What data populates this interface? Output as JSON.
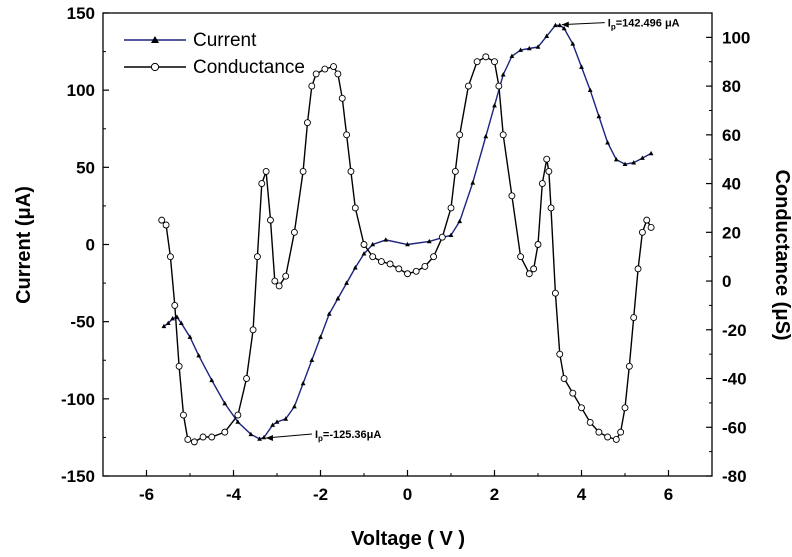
{
  "chart_data": {
    "type": "line",
    "xlabel": "Voltage ( V )",
    "ylabel": "Current (μA)",
    "y2label": "Conductance (μS)",
    "xlim": [
      -7,
      7
    ],
    "ylim": [
      -150,
      150
    ],
    "y2lim": [
      -80,
      110
    ],
    "xticks": [
      "-6",
      "-4",
      "-2",
      "0",
      "2",
      "4",
      "6"
    ],
    "yticks": [
      "150",
      "100",
      "50",
      "0",
      "-50",
      "-100",
      "-150"
    ],
    "y2ticks": [
      "100",
      "80",
      "60",
      "40",
      "20",
      "0",
      "-20",
      "-40",
      "-60",
      "-80"
    ],
    "legend_position": "top-left",
    "grid": false,
    "series": [
      {
        "name": "Current",
        "axis": "left",
        "marker": "triangle",
        "color": "#1a237e",
        "x": [
          -5.6,
          -5.5,
          -5.4,
          -5.3,
          -5.2,
          -5.0,
          -4.8,
          -4.5,
          -4.2,
          -3.9,
          -3.6,
          -3.4,
          -3.3,
          -3.1,
          -3.0,
          -2.8,
          -2.6,
          -2.4,
          -2.2,
          -2.0,
          -1.8,
          -1.6,
          -1.4,
          -1.2,
          -1.0,
          -0.8,
          -0.5,
          0.0,
          0.5,
          1.0,
          1.2,
          1.5,
          1.8,
          2.0,
          2.2,
          2.4,
          2.6,
          2.8,
          3.0,
          3.2,
          3.4,
          3.5,
          3.6,
          3.8,
          4.0,
          4.2,
          4.4,
          4.6,
          4.8,
          5.0,
          5.2,
          5.4,
          5.6
        ],
        "values": [
          -53,
          -51,
          -48,
          -47,
          -51,
          -60,
          -72,
          -88,
          -103,
          -115,
          -123,
          -126,
          -125,
          -117,
          -115,
          -113,
          -105,
          -90,
          -75,
          -60,
          -45,
          -35,
          -25,
          -15,
          -6,
          0,
          3,
          0,
          2,
          6,
          15,
          40,
          70,
          90,
          110,
          122,
          126,
          127,
          128,
          135,
          142,
          142,
          140,
          130,
          115,
          100,
          83,
          66,
          55,
          52,
          53,
          56,
          59
        ]
      },
      {
        "name": "Conductance",
        "axis": "right",
        "marker": "circle",
        "color": "#000000",
        "x": [
          -5.65,
          -5.55,
          -5.45,
          -5.35,
          -5.25,
          -5.15,
          -5.05,
          -4.9,
          -4.7,
          -4.5,
          -4.2,
          -3.9,
          -3.7,
          -3.55,
          -3.45,
          -3.35,
          -3.25,
          -3.15,
          -3.05,
          -2.95,
          -2.8,
          -2.6,
          -2.4,
          -2.3,
          -2.2,
          -2.1,
          -1.9,
          -1.7,
          -1.6,
          -1.5,
          -1.4,
          -1.3,
          -1.2,
          -1.0,
          -0.8,
          -0.6,
          -0.4,
          -0.2,
          0.0,
          0.2,
          0.4,
          0.6,
          0.8,
          1.0,
          1.1,
          1.2,
          1.4,
          1.6,
          1.8,
          2.0,
          2.1,
          2.2,
          2.4,
          2.6,
          2.8,
          2.9,
          3.0,
          3.1,
          3.2,
          3.25,
          3.3,
          3.4,
          3.5,
          3.6,
          3.8,
          4.0,
          4.2,
          4.4,
          4.6,
          4.8,
          4.9,
          5.0,
          5.1,
          5.2,
          5.3,
          5.4,
          5.5,
          5.6
        ],
        "values": [
          25,
          23,
          10,
          -10,
          -35,
          -55,
          -65,
          -66,
          -64,
          -64,
          -62,
          -55,
          -40,
          -20,
          10,
          40,
          45,
          25,
          0,
          -2,
          2,
          20,
          45,
          65,
          80,
          85,
          87,
          88,
          85,
          75,
          60,
          45,
          30,
          15,
          10,
          8,
          7,
          5,
          3,
          4,
          6,
          10,
          18,
          30,
          45,
          60,
          80,
          90,
          92,
          90,
          80,
          60,
          35,
          10,
          3,
          5,
          15,
          40,
          50,
          45,
          30,
          -5,
          -30,
          -40,
          -46,
          -52,
          -58,
          -62,
          -64,
          -65,
          -62,
          -52,
          -35,
          -15,
          5,
          20,
          25,
          22
        ]
      }
    ],
    "annotations": [
      {
        "text_main": "I",
        "text_sub": "p",
        "text_rest": "=142.496 μA",
        "x": 3.5,
        "y": 142.496
      },
      {
        "text_main": "I",
        "text_sub": "p",
        "text_rest": "=-125.36μA",
        "x": -3.3,
        "y": -125.36
      }
    ]
  }
}
